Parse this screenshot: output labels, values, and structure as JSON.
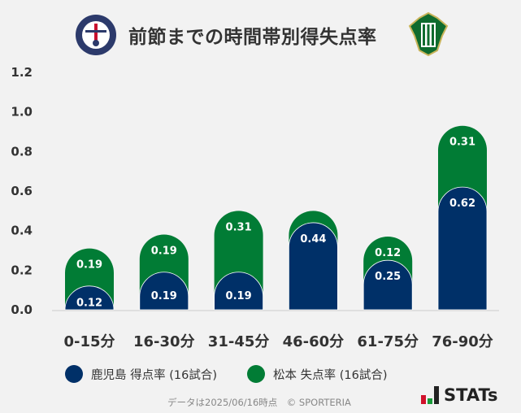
{
  "header": {
    "title": "前節までの時間帯別得失点率"
  },
  "chart_data": {
    "type": "bar",
    "stacked": true,
    "categories": [
      "0-15分",
      "16-30分",
      "31-45分",
      "46-60分",
      "61-75分",
      "76-90分"
    ],
    "series": [
      {
        "name": "鹿児島 得点率 (16試合)",
        "color": "#003068",
        "values": [
          0.12,
          0.19,
          0.19,
          0.44,
          0.25,
          0.62
        ]
      },
      {
        "name": "松本 失点率 (16試合)",
        "color": "#017c35",
        "values": [
          0.19,
          0.19,
          0.31,
          0.06,
          0.12,
          0.31
        ]
      }
    ],
    "data_labels": [
      [
        "0.12",
        "0.19",
        "0.19",
        "0.44",
        "0.25",
        "0.62"
      ],
      [
        "0.19",
        "0.19",
        "0.31",
        "",
        "0.12",
        "0.31"
      ]
    ],
    "yticks": [
      "0.0",
      "0.2",
      "0.4",
      "0.6",
      "0.8",
      "1.0",
      "1.2"
    ],
    "ylim": [
      0,
      1.2
    ],
    "grid": false,
    "legend": "bottom"
  },
  "footer": {
    "note": "データは2025/06/16時点　© SPORTERIA",
    "brand": "STATs"
  }
}
